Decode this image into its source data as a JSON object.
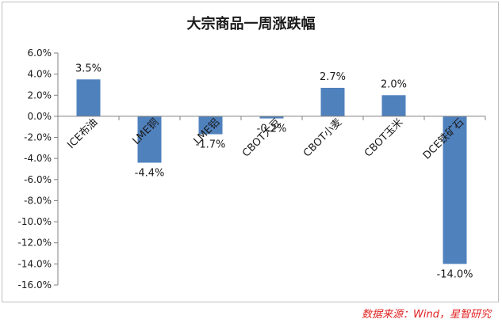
{
  "chart_data": {
    "type": "bar",
    "title": "大宗商品一周涨跌幅",
    "categories": [
      "ICE布油",
      "LME铜",
      "LME铝",
      "CBOT大豆",
      "CBOT小麦",
      "CBOT玉米",
      "DCE铁矿石"
    ],
    "values": [
      3.5,
      -4.4,
      -1.7,
      -0.2,
      2.7,
      2.0,
      -14.0
    ],
    "value_labels": [
      "3.5%",
      "-4.4%",
      "-1.7%",
      "-0.2%",
      "2.7%",
      "2.0%",
      "-14.0%"
    ],
    "y_ticks": [
      6,
      4,
      2,
      0,
      -2,
      -4,
      -6,
      -8,
      -10,
      -12,
      -14,
      -16
    ],
    "y_tick_labels": [
      "6.0%",
      "4.0%",
      "2.0%",
      "0.0%",
      "-2.0%",
      "-4.0%",
      "-6.0%",
      "-8.0%",
      "-10.0%",
      "-12.0%",
      "-14.0%",
      "-16.0%"
    ],
    "ylim": [
      -16,
      6
    ],
    "grid": false,
    "legend": "none",
    "bar_color": "#4f81bd"
  },
  "source": "数据来源：Wind，星智研究"
}
